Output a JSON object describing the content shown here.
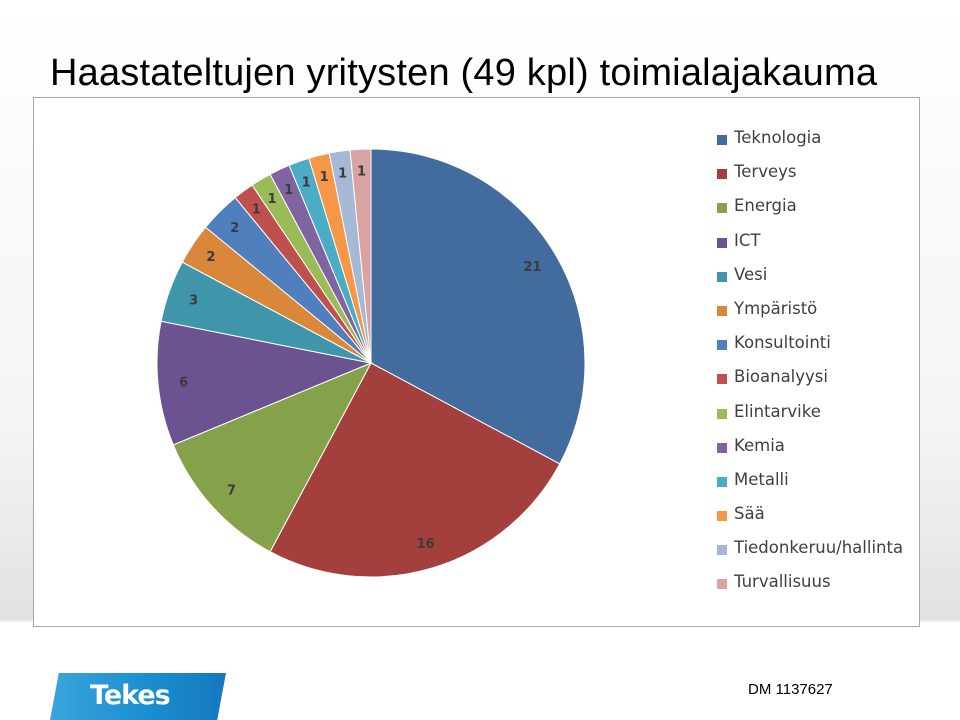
{
  "slide": {
    "title": "Haastateltujen yritysten (49 kpl) toimialajakauma",
    "doc_id": "DM 1137627",
    "logo_text": "Tekes"
  },
  "chart_data": {
    "type": "pie",
    "start_angle_deg": 0,
    "direction": "clockwise",
    "legend_position": "right",
    "data_labels": true,
    "slices": [
      {
        "label": "Teknologia",
        "value": 21,
        "color": "#436C9E"
      },
      {
        "label": "Terveys",
        "value": 16,
        "color": "#A3403D"
      },
      {
        "label": "Energia",
        "value": 7,
        "color": "#85A14A"
      },
      {
        "label": "ICT",
        "value": 6,
        "color": "#6B5290"
      },
      {
        "label": "Vesi",
        "value": 3,
        "color": "#3F96AA"
      },
      {
        "label": "Ympäristö",
        "value": 2,
        "color": "#D9873A"
      },
      {
        "label": "Konsultointi",
        "value": 2,
        "color": "#4F7FBD"
      },
      {
        "label": "Bioanalyysi",
        "value": 1,
        "color": "#C0504D"
      },
      {
        "label": "Elintarvike",
        "value": 1,
        "color": "#9BBB59"
      },
      {
        "label": "Kemia",
        "value": 1,
        "color": "#8064A2"
      },
      {
        "label": "Metalli",
        "value": 1,
        "color": "#4BACC6"
      },
      {
        "label": "Sää",
        "value": 1,
        "color": "#F79646"
      },
      {
        "label": "Tiedonkeruu/hallinta",
        "value": 1,
        "color": "#A5B8D5"
      },
      {
        "label": "Turvallisuus",
        "value": 1,
        "color": "#D9A3A2"
      }
    ]
  }
}
